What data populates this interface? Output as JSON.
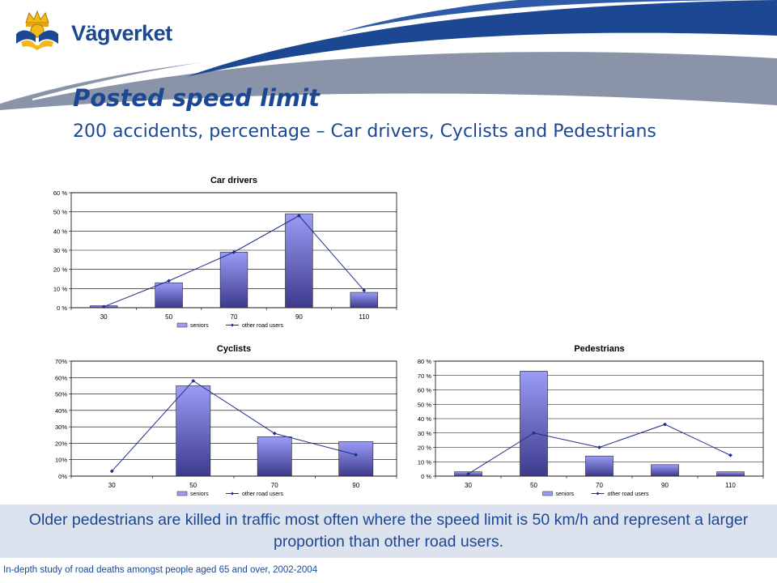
{
  "header": {
    "logo_text": "Vägverket",
    "title": "Posted speed limit",
    "subtitle": "200 accidents, percentage – Car drivers, Cyclists and Pedestrians"
  },
  "colors": {
    "brand_blue": "#1b4793",
    "banner_gray": "#8a94a8",
    "bar_top": "#9a9cf6",
    "bar_bottom": "#3d3a8c",
    "line": "#1d2d8f",
    "callout_bg": "#dde3ee"
  },
  "chart_data": [
    {
      "id": "car",
      "type": "bar",
      "title": "Car drivers",
      "categories": [
        "30",
        "50",
        "70",
        "90",
        "110"
      ],
      "ylim": [
        0,
        60
      ],
      "ytick_step": 10,
      "ytick_suffix": " %",
      "grid": true,
      "legend_placement": "bottom",
      "series": [
        {
          "name": "seniors",
          "kind": "bar",
          "values": [
            1,
            13,
            29,
            49,
            8
          ]
        },
        {
          "name": "other road users",
          "kind": "line",
          "values": [
            0.5,
            14,
            29,
            48,
            9
          ]
        }
      ]
    },
    {
      "id": "cyc",
      "type": "bar",
      "title": "Cyclists",
      "categories": [
        "30",
        "50",
        "70",
        "90"
      ],
      "ylim": [
        0,
        70
      ],
      "ytick_step": 10,
      "ytick_suffix": "%",
      "grid": true,
      "legend_placement": "bottom",
      "series": [
        {
          "name": "seniors",
          "kind": "bar",
          "values": [
            0,
            55,
            24,
            21
          ]
        },
        {
          "name": "other road users",
          "kind": "line",
          "values": [
            3,
            58,
            26,
            13
          ]
        }
      ]
    },
    {
      "id": "ped",
      "type": "bar",
      "title": "Pedestrians",
      "categories": [
        "30",
        "50",
        "70",
        "90",
        "110"
      ],
      "ylim": [
        0,
        80
      ],
      "ytick_step": 10,
      "ytick_suffix": " %",
      "grid": true,
      "legend_placement": "bottom",
      "series": [
        {
          "name": "seniors",
          "kind": "bar",
          "values": [
            3,
            73,
            14,
            8,
            3
          ]
        },
        {
          "name": "other road users",
          "kind": "line",
          "values": [
            1.5,
            30,
            20,
            36,
            14.5
          ]
        }
      ]
    }
  ],
  "callout": {
    "text": "Older pedestrians are killed in traffic most often where the speed limit is 50 km/h and represent a larger proportion than other road users."
  },
  "footer": {
    "text": "In-depth study of road deaths amongst people aged 65 and over, 2002-2004"
  }
}
